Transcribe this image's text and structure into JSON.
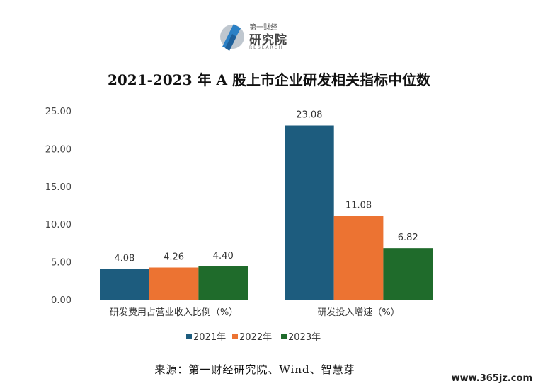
{
  "header": {
    "logo_top": "第一财经",
    "logo_main": "研究院",
    "logo_en": "RESEARCH"
  },
  "chart_data": {
    "type": "bar",
    "title": "2021-2023 年 A 股上市企业研发相关指标中位数",
    "categories": [
      "研发费用占营业收入比例（%）",
      "研发投入增速（%）"
    ],
    "series": [
      {
        "name": "2021年",
        "color": "#1d5c7e",
        "values": [
          4.08,
          23.08
        ]
      },
      {
        "name": "2022年",
        "color": "#ec7332",
        "values": [
          4.26,
          11.08
        ]
      },
      {
        "name": "2023年",
        "color": "#1f6b2b",
        "values": [
          4.4,
          6.82
        ]
      }
    ],
    "data_labels": [
      [
        "4.08",
        "23.08"
      ],
      [
        "4.26",
        "11.08"
      ],
      [
        "4.40",
        "6.82"
      ]
    ],
    "yticks": [
      "0.00",
      "5.00",
      "10.00",
      "15.00",
      "20.00",
      "25.00"
    ],
    "ylim": [
      0,
      25
    ],
    "legend_position": "bottom",
    "grid": false
  },
  "footer": {
    "source": "来源：第一财经研究院、Wind、智慧芽",
    "watermark": "www.365jz.com"
  }
}
